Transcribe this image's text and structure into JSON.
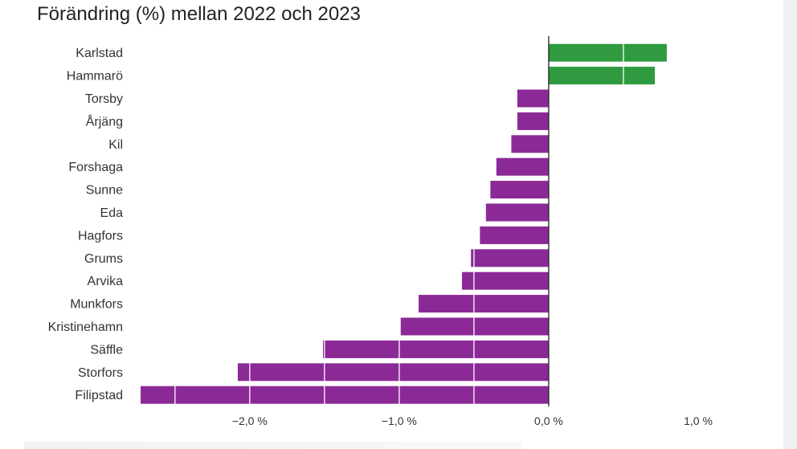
{
  "chart_data": {
    "type": "bar",
    "orientation": "horizontal",
    "title": "Förändring (%) mellan 2022 och 2023",
    "categories": [
      "Karlstad",
      "Hammarö",
      "Torsby",
      "Årjäng",
      "Kil",
      "Forshaga",
      "Sunne",
      "Eda",
      "Hagfors",
      "Grums",
      "Arvika",
      "Munkfors",
      "Kristinehamn",
      "Säffle",
      "Storfors",
      "Filipstad"
    ],
    "values": [
      0.79,
      0.71,
      -0.21,
      -0.21,
      -0.25,
      -0.35,
      -0.39,
      -0.42,
      -0.46,
      -0.52,
      -0.58,
      -0.87,
      -0.99,
      -1.51,
      -2.08,
      -2.73
    ],
    "xlim": [
      -2.73,
      1.0
    ],
    "ticks": [
      -2.0,
      -1.0,
      0.0,
      1.0
    ],
    "tick_labels": [
      "−2,0 %",
      "−1,0 %",
      "0,0 %",
      "1,0 %"
    ],
    "grid": true,
    "colors": {
      "positive": "#2f9a40",
      "negative": "#8b2a97",
      "gridline": "#ffffff",
      "zero_line": "#222222"
    }
  }
}
